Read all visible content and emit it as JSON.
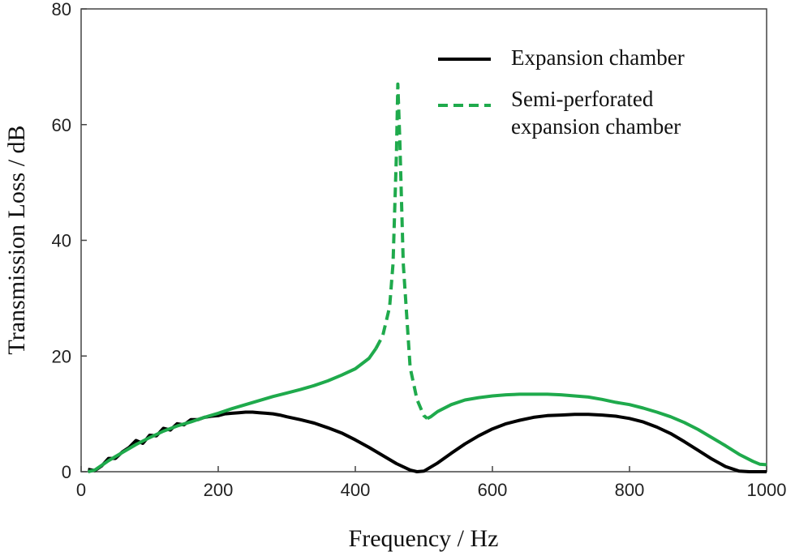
{
  "chart_data": {
    "type": "line",
    "xlabel": "Frequency / Hz",
    "ylabel": "Transmission Loss / dB",
    "xlim": [
      0,
      1000
    ],
    "ylim": [
      0,
      80
    ],
    "xticks": [
      0,
      200,
      400,
      600,
      800,
      1000
    ],
    "yticks": [
      0,
      20,
      40,
      60,
      80
    ],
    "grid": false,
    "legend_position": "top-right",
    "series": [
      {
        "name": "Expansion chamber",
        "color": "#000000",
        "style": "solid",
        "x": [
          10,
          20,
          30,
          40,
          50,
          60,
          70,
          80,
          90,
          100,
          110,
          120,
          130,
          140,
          150,
          160,
          170,
          180,
          190,
          200,
          210,
          220,
          230,
          240,
          250,
          260,
          270,
          280,
          290,
          300,
          320,
          340,
          360,
          380,
          400,
          420,
          440,
          460,
          480,
          490,
          500,
          520,
          540,
          560,
          580,
          600,
          620,
          640,
          660,
          680,
          700,
          720,
          740,
          760,
          780,
          800,
          820,
          840,
          860,
          880,
          900,
          920,
          940,
          960,
          975,
          1000
        ],
        "y": [
          0.4,
          0.2,
          1.0,
          2.3,
          2.3,
          3.4,
          4.2,
          5.4,
          4.9,
          6.3,
          6.2,
          7.5,
          7.2,
          8.3,
          8.1,
          9.0,
          9.0,
          9.4,
          9.6,
          9.7,
          10.0,
          10.1,
          10.2,
          10.3,
          10.3,
          10.2,
          10.1,
          10.0,
          9.8,
          9.5,
          9.0,
          8.4,
          7.6,
          6.7,
          5.5,
          4.2,
          2.8,
          1.4,
          0.3,
          0.0,
          0.1,
          1.5,
          3.2,
          4.8,
          6.2,
          7.4,
          8.3,
          8.9,
          9.4,
          9.7,
          9.8,
          9.9,
          9.9,
          9.8,
          9.6,
          9.2,
          8.6,
          7.7,
          6.6,
          5.2,
          3.7,
          2.2,
          0.9,
          0.1,
          0.0,
          0.0
        ]
      },
      {
        "name": "Semi-perforated\nexpansion chamber",
        "color": "#1faa4c",
        "style": "solid-dashed-near-peak",
        "dashed_range": [
          430,
          505
        ],
        "x": [
          10,
          20,
          40,
          60,
          80,
          100,
          120,
          140,
          160,
          180,
          200,
          220,
          240,
          260,
          280,
          300,
          320,
          340,
          360,
          380,
          400,
          420,
          430,
          440,
          450,
          455,
          460,
          462,
          465,
          470,
          480,
          490,
          500,
          505,
          510,
          520,
          540,
          560,
          580,
          600,
          620,
          640,
          660,
          680,
          700,
          720,
          740,
          760,
          780,
          800,
          820,
          840,
          860,
          880,
          900,
          920,
          940,
          960,
          980,
          990,
          1000
        ],
        "y": [
          0,
          0.3,
          1.9,
          3.3,
          4.7,
          5.9,
          7.0,
          7.9,
          8.6,
          9.4,
          10.1,
          10.9,
          11.6,
          12.3,
          13.0,
          13.6,
          14.2,
          14.9,
          15.7,
          16.7,
          17.8,
          19.6,
          21.3,
          23.5,
          28.5,
          36.0,
          55.0,
          67.0,
          57.0,
          36.0,
          18.0,
          12.5,
          9.7,
          9.2,
          9.5,
          10.4,
          11.6,
          12.4,
          12.8,
          13.1,
          13.3,
          13.4,
          13.4,
          13.4,
          13.3,
          13.1,
          12.9,
          12.5,
          12.0,
          11.6,
          11.0,
          10.3,
          9.5,
          8.5,
          7.3,
          5.9,
          4.5,
          3.0,
          1.8,
          1.3,
          1.2
        ]
      }
    ]
  }
}
